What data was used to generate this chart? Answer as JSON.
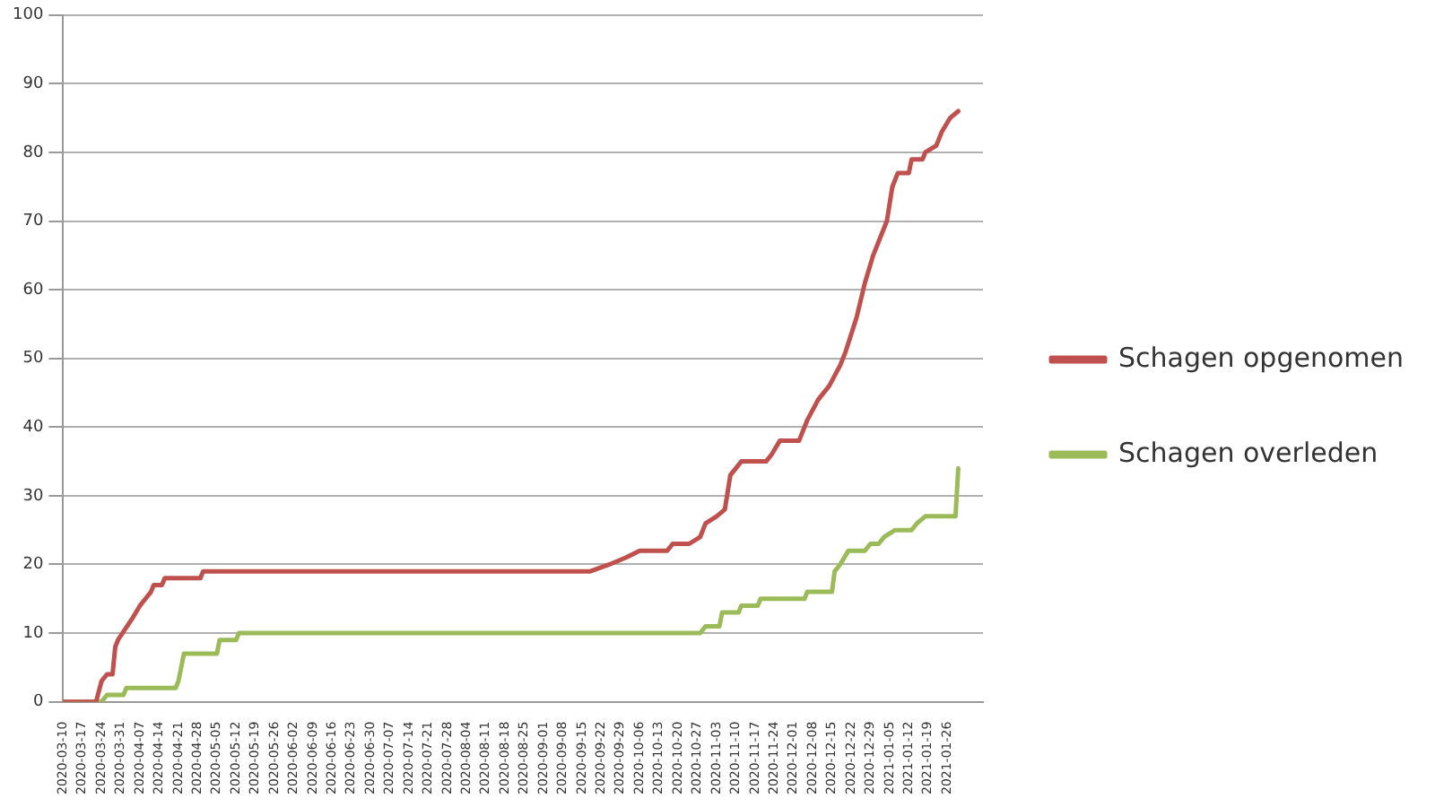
{
  "chart_data": {
    "type": "line",
    "legend": "right",
    "grid": "y",
    "marker": "none",
    "line_style": "solid",
    "xlim": [
      "2020-03-10",
      "2021-02-08"
    ],
    "xticks": [
      "2020-03-10",
      "2020-03-17",
      "2020-03-24",
      "2020-03-31",
      "2020-04-07",
      "2020-04-14",
      "2020-04-21",
      "2020-04-28",
      "2020-05-05",
      "2020-05-12",
      "2020-05-19",
      "2020-05-26",
      "2020-06-02",
      "2020-06-09",
      "2020-06-16",
      "2020-06-23",
      "2020-06-30",
      "2020-07-07",
      "2020-07-14",
      "2020-07-21",
      "2020-07-28",
      "2020-08-04",
      "2020-08-11",
      "2020-08-18",
      "2020-08-25",
      "2020-09-01",
      "2020-09-08",
      "2020-09-15",
      "2020-09-22",
      "2020-09-29",
      "2020-10-06",
      "2020-10-13",
      "2020-10-20",
      "2020-10-27",
      "2020-11-03",
      "2020-11-10",
      "2020-11-17",
      "2020-11-24",
      "2020-12-01",
      "2020-12-08",
      "2020-12-15",
      "2020-12-22",
      "2020-12-29",
      "2021-01-05",
      "2021-01-12",
      "2021-01-19",
      "2021-01-26"
    ],
    "ylim": [
      0,
      100
    ],
    "yticks": [
      0,
      10,
      20,
      30,
      40,
      50,
      60,
      70,
      80,
      90,
      100
    ],
    "series": [
      {
        "name": "Schagen opgenomen",
        "color": "#c0504d",
        "x": [
          "2020-03-10",
          "2020-03-22",
          "2020-03-24",
          "2020-03-26",
          "2020-03-28",
          "2020-03-29",
          "2020-03-30",
          "2020-04-04",
          "2020-04-07",
          "2020-04-09",
          "2020-04-11",
          "2020-04-12",
          "2020-04-15",
          "2020-04-16",
          "2020-04-29",
          "2020-04-30",
          "2020-09-18",
          "2020-09-25",
          "2020-10-01",
          "2020-10-06",
          "2020-10-16",
          "2020-10-18",
          "2020-10-24",
          "2020-10-28",
          "2020-10-30",
          "2020-11-03",
          "2020-11-06",
          "2020-11-08",
          "2020-11-12",
          "2020-11-21",
          "2020-11-23",
          "2020-11-26",
          "2020-12-03",
          "2020-12-06",
          "2020-12-10",
          "2020-12-14",
          "2020-12-18",
          "2020-12-20",
          "2020-12-24",
          "2020-12-27",
          "2020-12-30",
          "2021-01-01",
          "2021-01-04",
          "2021-01-06",
          "2021-01-08",
          "2021-01-12",
          "2021-01-13",
          "2021-01-17",
          "2021-01-18",
          "2021-01-22",
          "2021-01-24",
          "2021-01-27",
          "2021-01-30"
        ],
        "values": [
          0,
          0,
          3,
          4,
          4,
          8,
          9,
          12,
          14,
          15,
          16,
          17,
          17,
          18,
          18,
          19,
          19,
          20,
          21,
          22,
          22,
          23,
          23,
          24,
          26,
          27,
          28,
          33,
          35,
          35,
          36,
          38,
          38,
          41,
          44,
          46,
          49,
          51,
          56,
          61,
          65,
          67,
          70,
          75,
          77,
          77,
          79,
          79,
          80,
          81,
          83,
          85,
          86
        ]
      },
      {
        "name": "Schagen overleden",
        "color": "#9bbb59",
        "x": [
          "2020-03-10",
          "2020-03-24",
          "2020-03-26",
          "2020-04-01",
          "2020-04-02",
          "2020-04-20",
          "2020-04-21",
          "2020-04-23",
          "2020-05-05",
          "2020-05-06",
          "2020-05-12",
          "2020-05-13",
          "2020-10-28",
          "2020-10-30",
          "2020-11-04",
          "2020-11-05",
          "2020-11-11",
          "2020-11-12",
          "2020-11-18",
          "2020-11-19",
          "2020-12-05",
          "2020-12-06",
          "2020-12-15",
          "2020-12-16",
          "2020-12-18",
          "2020-12-21",
          "2020-12-27",
          "2020-12-29",
          "2021-01-01",
          "2021-01-03",
          "2021-01-07",
          "2021-01-13",
          "2021-01-15",
          "2021-01-18",
          "2021-01-29",
          "2021-01-30"
        ],
        "values": [
          0,
          0,
          1,
          1,
          2,
          2,
          3,
          7,
          7,
          9,
          9,
          10,
          10,
          11,
          11,
          13,
          13,
          14,
          14,
          15,
          15,
          16,
          16,
          19,
          20,
          22,
          22,
          23,
          23,
          24,
          25,
          25,
          26,
          27,
          27,
          34
        ]
      }
    ]
  }
}
